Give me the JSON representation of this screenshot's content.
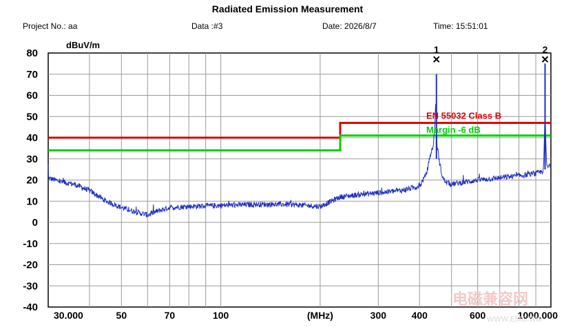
{
  "header": {
    "title": "Radiated Emission Measurement",
    "project": "Project No.: aa",
    "data": "Data :#3",
    "date": "Date: 2026/8/7",
    "time": "Time: 15:51:01"
  },
  "watermark": {
    "cn": "电磁兼容网",
    "url": "WWW.EMC.Wor"
  },
  "colors": {
    "trace": "#1f2fbf",
    "limit": "#e00000",
    "margin": "#00d000",
    "grid": "#9a9a9a"
  },
  "chart_data": {
    "type": "line",
    "title": "Radiated Emission Measurement",
    "xlabel": "(MHz)",
    "ylabel": "dBuV/m",
    "x_scale": "log",
    "xlim": [
      30,
      1000
    ],
    "ylim": [
      -40,
      80
    ],
    "grid": true,
    "x_ticks": [
      {
        "value": 30,
        "label": "30.000"
      },
      {
        "value": 50,
        "label": "50"
      },
      {
        "value": 70,
        "label": "70"
      },
      {
        "value": 100,
        "label": "100"
      },
      {
        "value": 200,
        "label": "(MHz)"
      },
      {
        "value": 300,
        "label": "300"
      },
      {
        "value": 400,
        "label": "400"
      },
      {
        "value": 600,
        "label": "600"
      },
      {
        "value": 1000,
        "label": "1000.000"
      }
    ],
    "x_grid": [
      30,
      40,
      50,
      60,
      70,
      80,
      90,
      100,
      200,
      300,
      400,
      500,
      600,
      700,
      800,
      900,
      1000
    ],
    "y_ticks": [
      80,
      70,
      60,
      50,
      40,
      30,
      20,
      10,
      0,
      -10,
      -20,
      -30,
      -40
    ],
    "series": [
      {
        "name": "EN 55032 Class B",
        "role": "limit",
        "x": [
          30,
          230,
          230,
          1000
        ],
        "y": [
          40,
          40,
          47,
          47
        ]
      },
      {
        "name": "Margin -6 dB",
        "role": "margin",
        "x": [
          30,
          230,
          230,
          1000
        ],
        "y": [
          34,
          34,
          41,
          41
        ]
      },
      {
        "name": "",
        "role": "measurement",
        "x": [
          30,
          33,
          36,
          40,
          45,
          50,
          55,
          60,
          65,
          70,
          80,
          100,
          130,
          160,
          200,
          230,
          260,
          300,
          350,
          400,
          420,
          430,
          440,
          445,
          448,
          450,
          452,
          455,
          460,
          470,
          480,
          500,
          600,
          700,
          800,
          900,
          940,
          950,
          960,
          970,
          980,
          1000
        ],
        "y": [
          21,
          19,
          18,
          15,
          10,
          7,
          5,
          3.5,
          5.5,
          7,
          7.5,
          8,
          8.5,
          8.5,
          7.5,
          12,
          13,
          14,
          15,
          17,
          23,
          31,
          36,
          45,
          58,
          44,
          36,
          34,
          28,
          21,
          19,
          18,
          20,
          21,
          22,
          23,
          24,
          25,
          52,
          27,
          26,
          27
        ]
      }
    ],
    "markers": [
      {
        "label": "1",
        "x": 450,
        "y": 77
      },
      {
        "label": "2",
        "x": 960,
        "y": 77
      }
    ],
    "annotations": [
      "EN 55032 Class B",
      "Margin -6 dB"
    ]
  }
}
